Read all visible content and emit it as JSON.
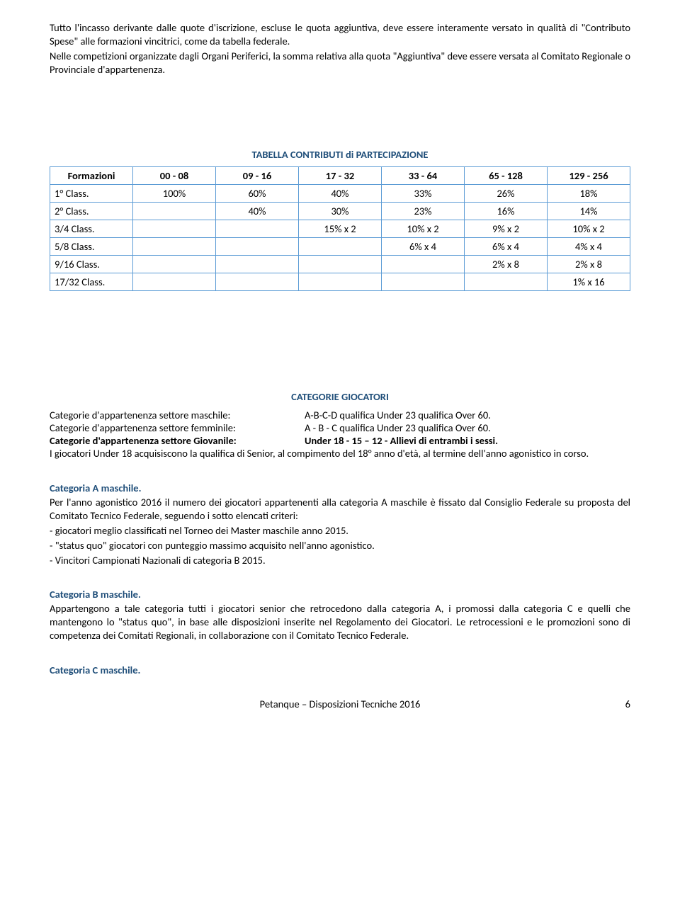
{
  "intro": {
    "p1": "Tutto l'incasso derivante dalle quote d'iscrizione, escluse le quota aggiuntiva, deve essere interamente versato in qualità di \"Contributo Spese\" alle formazioni vincitrici, come da tabella federale.",
    "p2": "Nelle competizioni organizzate dagli Organi Periferici, la somma relativa alla quota \"Aggiuntiva\" deve essere versata al Comitato Regionale o Provinciale d'appartenenza."
  },
  "tabella": {
    "title": "TABELLA CONTRIBUTI di PARTECIPAZIONE",
    "headers": [
      "Formazioni",
      "00  - 08",
      "09 - 16",
      "17 - 32",
      "33 - 64",
      "65 - 128",
      "129 - 256"
    ],
    "rows": [
      {
        "label": "1° Class.",
        "c": [
          "100%",
          "60%",
          "40%",
          "33%",
          "26%",
          "18%"
        ]
      },
      {
        "label": "2° Class.",
        "c": [
          "",
          "40%",
          "30%",
          "23%",
          "16%",
          "14%"
        ]
      },
      {
        "label": "3/4 Class.",
        "c": [
          "",
          "",
          "15% x 2",
          "10% x 2",
          "9% x 2",
          "10% x 2"
        ]
      },
      {
        "label": "5/8 Class.",
        "c": [
          "",
          "",
          "",
          "6% x 4",
          "6% x 4",
          "4% x 4"
        ]
      },
      {
        "label": "9/16 Class.",
        "c": [
          "",
          "",
          "",
          "",
          "2% x 8",
          "2% x 8"
        ]
      },
      {
        "label": "17/32 Class.",
        "c": [
          "",
          "",
          "",
          "",
          "",
          "1% x 16"
        ]
      }
    ]
  },
  "categorie": {
    "title": "CATEGORIE GIOCATORI",
    "rows": [
      {
        "l": "Categorie d'appartenenza settore maschile:",
        "r": "A-B-C-D qualifica Under 23 qualifica Over 60.",
        "lbold": false
      },
      {
        "l": "Categorie d'appartenenza settore femminile:",
        "r": "A - B - C qualifica Under 23 qualifica Over 60.",
        "lbold": false
      },
      {
        "l": "Categorie d'appartenenza settore Giovanile:",
        "r": "Under 18 - 15 – 12 - Allievi di entrambi i sessi.",
        "lbold": true
      }
    ],
    "note": "I giocatori Under 18 acquisiscono la qualifica di Senior, al compimento del 18° anno d'età, al termine dell'anno agonistico in corso."
  },
  "catA": {
    "title": "Categoria A maschile.",
    "p1": "Per l'anno agonistico 2016 il numero dei giocatori appartenenti alla categoria A maschile è fissato dal Consiglio Federale su proposta del Comitato Tecnico Federale, seguendo i sotto elencati criteri:",
    "b1": "- giocatori meglio classificati nel Torneo dei Master maschile anno 2015.",
    "b2": "- \"status quo\" giocatori con punteggio massimo acquisito nell'anno agonistico.",
    "b3": "- Vincitori Campionati Nazionali di categoria B 2015."
  },
  "catB": {
    "title": "Categoria B maschile.",
    "p1": "Appartengono a tale categoria tutti i giocatori senior che retrocedono dalla categoria A, i promossi dalla categoria C e quelli che mantengono lo \"status quo\", in base alle disposizioni inserite nel Regolamento dei Giocatori. Le retrocessioni e le promozioni sono di competenza dei Comitati Regionali, in collaborazione con il Comitato Tecnico Federale."
  },
  "catC": {
    "title": "Categoria C maschile."
  },
  "footer": {
    "center": "Petanque – Disposizioni Tecniche 2016",
    "page": "6"
  },
  "colors": {
    "heading": "#1f4e79",
    "border": "#5b9bd5"
  }
}
